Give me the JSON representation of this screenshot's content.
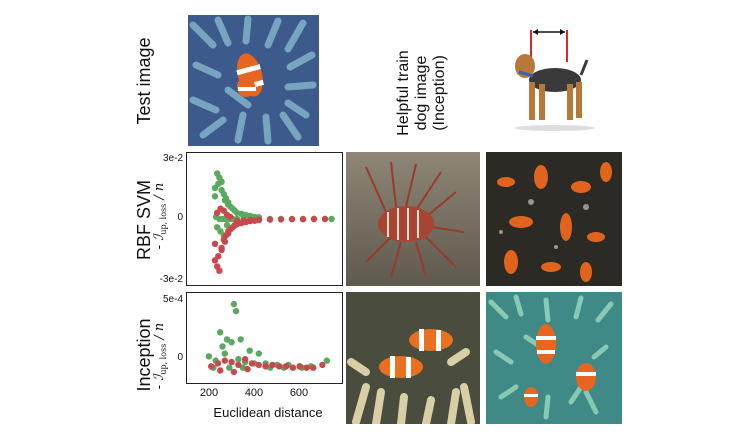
{
  "labels": {
    "test_image": "Test image",
    "helpful_line1": "Helpful train",
    "helpful_line2": "dog image",
    "helpful_line3": "(Inception)",
    "rbf_svm": "RBF SVM",
    "inception": "Inception",
    "y_axis_main": "- ℐ",
    "y_axis_sub": "up, loss",
    "y_axis_tail": " / n",
    "x_axis": "Euclidean distance"
  },
  "colors": {
    "green": "#5aa862",
    "red": "#c8494d",
    "frame": "#222222"
  },
  "chart_data": [
    {
      "type": "scatter",
      "title": "",
      "xlabel": "",
      "ylabel": "- ℐ up, loss / n",
      "y_ticks": [
        "3e-2",
        "0",
        "-3e-2"
      ],
      "ylim": [
        -0.03,
        0.03
      ],
      "xlim": [
        100,
        750
      ],
      "series": [
        {
          "color": "#5aa862",
          "x": [
            200,
            210,
            220,
            230,
            240,
            250,
            260,
            270,
            280,
            290,
            300,
            320,
            340,
            360,
            380,
            400,
            200,
            215,
            230,
            245,
            260,
            210,
            225,
            240,
            255,
            205,
            220,
            235,
            250,
            265,
            280,
            300,
            330,
            360,
            400,
            450,
            500,
            550,
            600,
            650,
            700,
            730
          ],
          "y": [
            0.015,
            0.022,
            0.02,
            0.018,
            0.012,
            0.01,
            0.008,
            0.006,
            0.005,
            0.004,
            0.003,
            0.0025,
            0.002,
            0.0015,
            0.001,
            0.0008,
            0.011,
            0.017,
            0.014,
            0.009,
            0.007,
            -0.004,
            -0.006,
            -0.008,
            -0.003,
            0.001,
            0.0,
            0.0,
            0.0,
            0.0,
            0.0,
            0.0,
            0.0,
            0.0,
            0.0,
            0.0,
            0.0,
            0.0,
            0.0,
            0.0,
            0.0,
            0.0
          ]
        },
        {
          "color": "#c8494d",
          "x": [
            200,
            210,
            220,
            230,
            240,
            250,
            260,
            270,
            280,
            290,
            300,
            320,
            340,
            360,
            380,
            400,
            200,
            215,
            230,
            245,
            260,
            210,
            225,
            240,
            255,
            270,
            300,
            330,
            360,
            400,
            450,
            500,
            550,
            600,
            650,
            700
          ],
          "y": [
            -0.02,
            -0.023,
            -0.025,
            -0.015,
            -0.01,
            -0.008,
            -0.006,
            -0.005,
            -0.004,
            -0.003,
            -0.0025,
            -0.002,
            -0.0015,
            -0.001,
            -0.0008,
            -0.0005,
            -0.012,
            -0.018,
            -0.014,
            -0.011,
            -0.007,
            0.003,
            0.005,
            0.004,
            0.002,
            0.001,
            -0.001,
            -0.0007,
            -0.0005,
            -0.0004,
            -0.0003,
            -0.0002,
            -0.0001,
            -0.0001,
            0.0,
            0.0
          ]
        }
      ]
    },
    {
      "type": "scatter",
      "title": "",
      "xlabel": "Euclidean distance",
      "ylabel": "- ℐ up, loss / n",
      "y_ticks": [
        "5e-4",
        "0"
      ],
      "x_ticks": [
        "200",
        "400",
        "600"
      ],
      "ylim": [
        -8e-05,
        0.0005
      ],
      "xlim": [
        130,
        760
      ],
      "series": [
        {
          "color": "#5aa862",
          "x": [
            310,
            320,
            250,
            280,
            300,
            260,
            340,
            380,
            420,
            200,
            230,
            270,
            330,
            360,
            400,
            450,
            500,
            550,
            600,
            650,
            720,
            220,
            290,
            350,
            470,
            530,
            610
          ],
          "y": [
            0.00045,
            0.0004,
            0.00025,
            0.0002,
            0.00018,
            0.00015,
            0.0002,
            0.00012,
            0.0001,
            8e-05,
            5e-05,
            0.0001,
            6e-05,
            4e-05,
            3e-05,
            3e-05,
            2e-05,
            2e-05,
            1e-05,
            1e-05,
            5e-05,
            0.0,
            0.0,
            0.0,
            0.0,
            0.0,
            0.0
          ]
        },
        {
          "color": "#c8494d",
          "x": [
            210,
            240,
            270,
            300,
            330,
            360,
            390,
            420,
            450,
            480,
            510,
            540,
            570,
            600,
            630,
            660,
            700,
            250,
            310,
            370
          ],
          "y": [
            1e-05,
            3e-05,
            5e-05,
            4e-05,
            2e-05,
            6e-05,
            3e-05,
            2e-05,
            1e-05,
            2e-05,
            1e-05,
            1e-05,
            0.0,
            1e-05,
            0.0,
            0.0,
            2e-05,
            -2e-05,
            -3e-05,
            -1e-05
          ]
        }
      ]
    }
  ]
}
